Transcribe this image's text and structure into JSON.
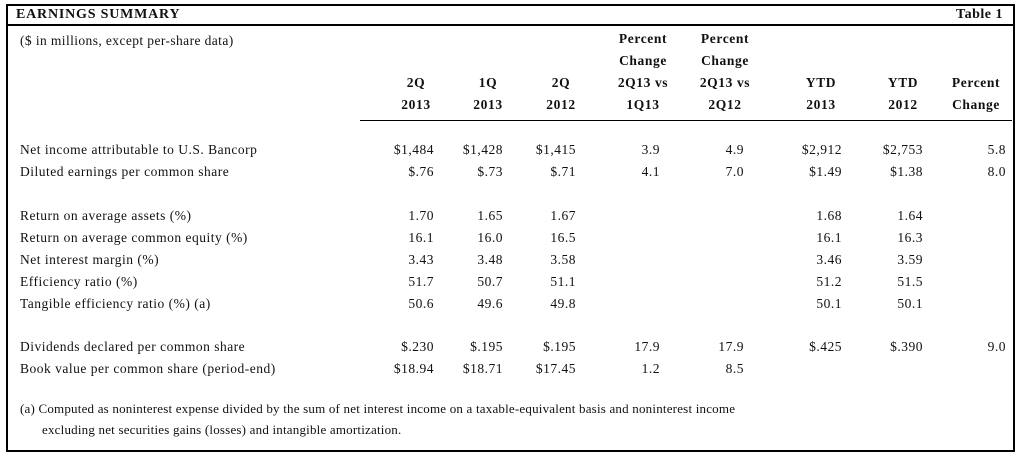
{
  "header": {
    "title": "EARNINGS SUMMARY",
    "table_number": "Table 1",
    "subtitle": "($ in millions, except per-share data)"
  },
  "columns": [
    {
      "line1": "",
      "line2": "",
      "line3": "2Q",
      "line4": "2013"
    },
    {
      "line1": "",
      "line2": "",
      "line3": "1Q",
      "line4": "2013"
    },
    {
      "line1": "",
      "line2": "",
      "line3": "2Q",
      "line4": "2012"
    },
    {
      "line1": "Percent",
      "line2": "Change",
      "line3": "2Q13 vs",
      "line4": "1Q13"
    },
    {
      "line1": "Percent",
      "line2": "Change",
      "line3": "2Q13 vs",
      "line4": "2Q12"
    },
    {
      "line1": "",
      "line2": "",
      "line3": "YTD",
      "line4": "2013"
    },
    {
      "line1": "",
      "line2": "",
      "line3": "YTD",
      "line4": "2012"
    },
    {
      "line1": "",
      "line2": "",
      "line3": "Percent",
      "line4": "Change"
    }
  ],
  "rows": [
    {
      "label": "Net income attributable to U.S. Bancorp",
      "values": [
        "$1,484",
        "$1,428",
        "$1,415",
        "3.9",
        "4.9",
        "$2,912",
        "$2,753",
        "5.8"
      ]
    },
    {
      "label": "Diluted earnings per common share",
      "values": [
        "$.76",
        "$.73",
        "$.71",
        "4.1",
        "7.0",
        "$1.49",
        "$1.38",
        "8.0"
      ]
    },
    {
      "label": "Return on average assets (%)",
      "values": [
        "1.70",
        "1.65",
        "1.67",
        "",
        "",
        "1.68",
        "1.64",
        ""
      ]
    },
    {
      "label": "Return on average common equity (%)",
      "values": [
        "16.1",
        "16.0",
        "16.5",
        "",
        "",
        "16.1",
        "16.3",
        ""
      ]
    },
    {
      "label": "Net interest margin (%)",
      "values": [
        "3.43",
        "3.48",
        "3.58",
        "",
        "",
        "3.46",
        "3.59",
        ""
      ]
    },
    {
      "label": "Efficiency ratio (%)",
      "values": [
        "51.7",
        "50.7",
        "51.1",
        "",
        "",
        "51.2",
        "51.5",
        ""
      ]
    },
    {
      "label": "Tangible efficiency ratio (%) (a)",
      "values": [
        "50.6",
        "49.6",
        "49.8",
        "",
        "",
        "50.1",
        "50.1",
        ""
      ]
    },
    {
      "label": "Dividends declared per common share",
      "values": [
        "$.230",
        "$.195",
        "$.195",
        "17.9",
        "17.9",
        "$.425",
        "$.390",
        "9.0"
      ]
    },
    {
      "label": "Book value per common share (period-end)",
      "values": [
        "$18.94",
        "$18.71",
        "$17.45",
        "1.2",
        "8.5",
        "",
        "",
        ""
      ]
    }
  ],
  "footnote": {
    "line1": "(a) Computed as noninterest expense divided by the sum of net interest income on a taxable-equivalent basis and noninterest income",
    "line2": "excluding net securities gains (losses) and intangible amortization."
  }
}
